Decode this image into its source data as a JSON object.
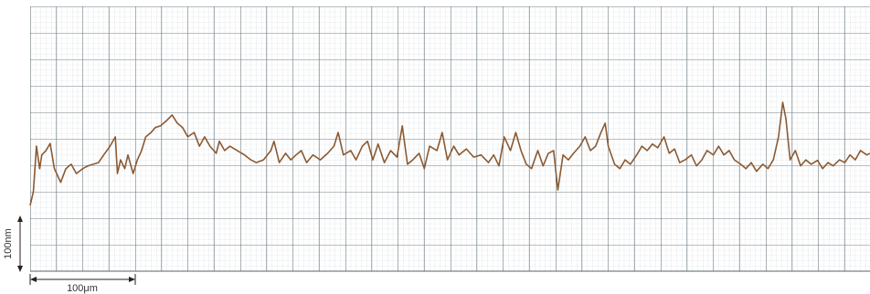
{
  "chart_data": {
    "type": "line",
    "x_scale_label": "100μm",
    "y_scale_label": "100nm",
    "color": "#8b5a32",
    "xlim": [
      0,
      799
    ],
    "ylim": [
      0,
      483
    ],
    "x": [
      0,
      3,
      6,
      9,
      11,
      15,
      19,
      23,
      29,
      34,
      39,
      44,
      50,
      55,
      60,
      65,
      70,
      76,
      81,
      83,
      86,
      90,
      93,
      98,
      102,
      106,
      110,
      115,
      119,
      124,
      130,
      135,
      140,
      145,
      150,
      156,
      161,
      166,
      171,
      177,
      180,
      185,
      190,
      197,
      204,
      210,
      215,
      222,
      229,
      232,
      237,
      243,
      248,
      253,
      258,
      263,
      269,
      276,
      283,
      289,
      293,
      298,
      305,
      310,
      316,
      321,
      326,
      331,
      337,
      343,
      349,
      354,
      359,
      364,
      370,
      375,
      380,
      387,
      392,
      397,
      403,
      408,
      415,
      422,
      429,
      436,
      441,
      446,
      451,
      457,
      462,
      467,
      472,
      477,
      483,
      488,
      493,
      498,
      502,
      507,
      512,
      517,
      523,
      528,
      533,
      538,
      543,
      547,
      550,
      556,
      561,
      566,
      571,
      577,
      582,
      587,
      592,
      597,
      603,
      608,
      613,
      618,
      623,
      629,
      634,
      639,
      644,
      650,
      655,
      660,
      665,
      670,
      676,
      681,
      686,
      691,
      697,
      702,
      707,
      712,
      716,
      719,
      723,
      728,
      733,
      738,
      743,
      749,
      754,
      759,
      764,
      770,
      775,
      780,
      785,
      790,
      796,
      799
    ],
    "values": [
      120,
      145,
      228,
      187,
      212,
      220,
      233,
      187,
      162,
      187,
      195,
      178,
      187,
      192,
      195,
      198,
      212,
      228,
      245,
      178,
      203,
      187,
      212,
      178,
      203,
      220,
      245,
      253,
      262,
      265,
      275,
      285,
      270,
      262,
      245,
      253,
      228,
      245,
      228,
      215,
      237,
      220,
      228,
      220,
      212,
      203,
      198,
      203,
      220,
      237,
      198,
      215,
      203,
      212,
      220,
      198,
      212,
      203,
      215,
      228,
      253,
      212,
      220,
      203,
      228,
      237,
      203,
      232,
      198,
      220,
      208,
      265,
      195,
      203,
      215,
      187,
      228,
      220,
      253,
      203,
      228,
      212,
      223,
      208,
      212,
      198,
      212,
      192,
      245,
      220,
      253,
      220,
      195,
      187,
      220,
      192,
      215,
      220,
      148,
      212,
      203,
      215,
      228,
      245,
      220,
      228,
      253,
      270,
      228,
      195,
      187,
      203,
      195,
      212,
      228,
      220,
      232,
      225,
      245,
      215,
      223,
      198,
      203,
      212,
      192,
      203,
      220,
      212,
      228,
      212,
      220,
      203,
      195,
      187,
      198,
      182,
      195,
      187,
      203,
      245,
      308,
      278,
      203,
      220,
      192,
      203,
      195,
      202,
      187,
      198,
      192,
      203,
      198,
      212,
      203,
      220,
      212,
      215
    ]
  }
}
